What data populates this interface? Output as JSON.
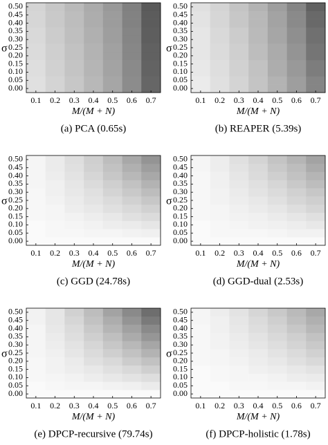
{
  "chart_data": [
    {
      "type": "heatmap",
      "caption": "(a)  PCA (0.65s)",
      "xlabel": "M/(M + N)",
      "ylabel": "σ",
      "x": [
        0.1,
        0.2,
        0.3,
        0.4,
        0.5,
        0.6,
        0.7
      ],
      "y": [
        0,
        0.05,
        0.1,
        0.15,
        0.2,
        0.25,
        0.3,
        0.35,
        0.4,
        0.45,
        0.5
      ],
      "xlim": [
        0.05,
        0.75
      ],
      "ylim": [
        -0.025,
        0.525
      ],
      "xticks": [
        0.1,
        0.2,
        0.3,
        0.4,
        0.5,
        0.6,
        0.7
      ],
      "yticks": [
        {
          "value": 0,
          "label": "0.00"
        },
        {
          "value": 0.05,
          "label": "0.05"
        },
        {
          "value": 0.1,
          "label": "0.10"
        },
        {
          "value": 0.15,
          "label": "0.15"
        },
        {
          "value": 0.2,
          "label": "0.20"
        },
        {
          "value": 0.25,
          "label": "0.25"
        },
        {
          "value": 0.3,
          "label": "0.30"
        },
        {
          "value": 0.35,
          "label": "0.35"
        },
        {
          "value": 0.4,
          "label": "0.40"
        },
        {
          "value": 0.45,
          "label": "0.45"
        },
        {
          "value": 0.5,
          "label": "0.50"
        }
      ],
      "z": [
        [
          0.12,
          0.17,
          0.22,
          0.28,
          0.35,
          0.45,
          0.6
        ],
        [
          0.12,
          0.17,
          0.22,
          0.28,
          0.35,
          0.45,
          0.6
        ],
        [
          0.13,
          0.18,
          0.23,
          0.29,
          0.36,
          0.46,
          0.61
        ],
        [
          0.13,
          0.18,
          0.23,
          0.29,
          0.36,
          0.46,
          0.61
        ],
        [
          0.14,
          0.19,
          0.24,
          0.3,
          0.37,
          0.47,
          0.62
        ],
        [
          0.14,
          0.19,
          0.24,
          0.3,
          0.37,
          0.47,
          0.62
        ],
        [
          0.15,
          0.2,
          0.25,
          0.31,
          0.38,
          0.48,
          0.63
        ],
        [
          0.15,
          0.2,
          0.25,
          0.31,
          0.38,
          0.48,
          0.63
        ],
        [
          0.16,
          0.21,
          0.26,
          0.32,
          0.39,
          0.49,
          0.64
        ],
        [
          0.16,
          0.21,
          0.26,
          0.32,
          0.39,
          0.49,
          0.64
        ],
        [
          0.17,
          0.22,
          0.27,
          0.33,
          0.4,
          0.5,
          0.65
        ]
      ]
    },
    {
      "type": "heatmap",
      "caption": "(b) REAPER (5.39s)",
      "xlabel": "M/(M + N)",
      "ylabel": "σ",
      "x": [
        0.1,
        0.2,
        0.3,
        0.4,
        0.5,
        0.6,
        0.7
      ],
      "y": [
        0,
        0.05,
        0.1,
        0.15,
        0.2,
        0.25,
        0.3,
        0.35,
        0.4,
        0.45,
        0.5
      ],
      "xlim": [
        0.05,
        0.75
      ],
      "ylim": [
        -0.025,
        0.525
      ],
      "xticks": [
        0.1,
        0.2,
        0.3,
        0.4,
        0.5,
        0.6,
        0.7
      ],
      "yticks": [
        {
          "value": 0,
          "label": "0.00"
        },
        {
          "value": 0.05,
          "label": "0.05"
        },
        {
          "value": 0.1,
          "label": "0.10"
        },
        {
          "value": 0.15,
          "label": "0.15"
        },
        {
          "value": 0.2,
          "label": "0.20"
        },
        {
          "value": 0.25,
          "label": "0.25"
        },
        {
          "value": 0.3,
          "label": "0.30"
        },
        {
          "value": 0.35,
          "label": "0.35"
        },
        {
          "value": 0.4,
          "label": "0.40"
        },
        {
          "value": 0.45,
          "label": "0.45"
        },
        {
          "value": 0.5,
          "label": "0.50"
        }
      ],
      "z": [
        [
          0.08,
          0.12,
          0.17,
          0.23,
          0.3,
          0.38,
          0.48
        ],
        [
          0.08,
          0.12,
          0.17,
          0.23,
          0.3,
          0.38,
          0.48
        ],
        [
          0.09,
          0.13,
          0.18,
          0.24,
          0.32,
          0.4,
          0.51
        ],
        [
          0.09,
          0.13,
          0.18,
          0.24,
          0.32,
          0.4,
          0.51
        ],
        [
          0.1,
          0.14,
          0.19,
          0.26,
          0.33,
          0.42,
          0.54
        ],
        [
          0.1,
          0.14,
          0.19,
          0.26,
          0.33,
          0.42,
          0.54
        ],
        [
          0.1,
          0.15,
          0.2,
          0.27,
          0.35,
          0.44,
          0.56
        ],
        [
          0.1,
          0.15,
          0.2,
          0.27,
          0.35,
          0.44,
          0.56
        ],
        [
          0.11,
          0.16,
          0.22,
          0.28,
          0.36,
          0.46,
          0.59
        ],
        [
          0.11,
          0.16,
          0.22,
          0.28,
          0.36,
          0.46,
          0.59
        ],
        [
          0.12,
          0.17,
          0.23,
          0.3,
          0.38,
          0.48,
          0.62
        ]
      ]
    },
    {
      "type": "heatmap",
      "caption": "(c) GGD (24.78s)",
      "xlabel": "M/(M + N)",
      "ylabel": "σ",
      "x": [
        0.1,
        0.2,
        0.3,
        0.4,
        0.5,
        0.6,
        0.7
      ],
      "y": [
        0,
        0.05,
        0.1,
        0.15,
        0.2,
        0.25,
        0.3,
        0.35,
        0.4,
        0.45,
        0.5
      ],
      "xlim": [
        0.05,
        0.75
      ],
      "ylim": [
        -0.025,
        0.525
      ],
      "xticks": [
        0.1,
        0.2,
        0.3,
        0.4,
        0.5,
        0.6,
        0.7
      ],
      "yticks": [
        {
          "value": 0,
          "label": "0.00"
        },
        {
          "value": 0.05,
          "label": "0.05"
        },
        {
          "value": 0.1,
          "label": "0.10"
        },
        {
          "value": 0.15,
          "label": "0.15"
        },
        {
          "value": 0.2,
          "label": "0.20"
        },
        {
          "value": 0.25,
          "label": "0.25"
        },
        {
          "value": 0.3,
          "label": "0.30"
        },
        {
          "value": 0.35,
          "label": "0.35"
        },
        {
          "value": 0.4,
          "label": "0.40"
        },
        {
          "value": 0.45,
          "label": "0.45"
        },
        {
          "value": 0.5,
          "label": "0.50"
        }
      ],
      "z": [
        [
          0.02,
          0.02,
          0.02,
          0.02,
          0.02,
          0.02,
          0.02
        ],
        [
          0.02,
          0.03,
          0.03,
          0.04,
          0.04,
          0.05,
          0.06
        ],
        [
          0.02,
          0.03,
          0.04,
          0.05,
          0.07,
          0.08,
          0.1
        ],
        [
          0.03,
          0.04,
          0.05,
          0.07,
          0.09,
          0.12,
          0.14
        ],
        [
          0.03,
          0.04,
          0.07,
          0.09,
          0.12,
          0.15,
          0.18
        ],
        [
          0.03,
          0.05,
          0.08,
          0.11,
          0.14,
          0.18,
          0.22
        ],
        [
          0.03,
          0.06,
          0.09,
          0.12,
          0.17,
          0.21,
          0.26
        ],
        [
          0.04,
          0.06,
          0.1,
          0.14,
          0.19,
          0.24,
          0.3
        ],
        [
          0.04,
          0.07,
          0.11,
          0.16,
          0.22,
          0.28,
          0.34
        ],
        [
          0.04,
          0.08,
          0.12,
          0.18,
          0.24,
          0.31,
          0.38
        ],
        [
          0.04,
          0.08,
          0.13,
          0.19,
          0.26,
          0.34,
          0.42
        ]
      ]
    },
    {
      "type": "heatmap",
      "caption": "(d) GGD-dual (2.53s)",
      "xlabel": "M/(M + N)",
      "ylabel": "σ",
      "x": [
        0.1,
        0.2,
        0.3,
        0.4,
        0.5,
        0.6,
        0.7
      ],
      "y": [
        0,
        0.05,
        0.1,
        0.15,
        0.2,
        0.25,
        0.3,
        0.35,
        0.4,
        0.45,
        0.5
      ],
      "xlim": [
        0.05,
        0.75
      ],
      "ylim": [
        -0.025,
        0.525
      ],
      "xticks": [
        0.1,
        0.2,
        0.3,
        0.4,
        0.5,
        0.6,
        0.7
      ],
      "yticks": [
        {
          "value": 0,
          "label": "0.00"
        },
        {
          "value": 0.05,
          "label": "0.05"
        },
        {
          "value": 0.1,
          "label": "0.10"
        },
        {
          "value": 0.15,
          "label": "0.15"
        },
        {
          "value": 0.2,
          "label": "0.20"
        },
        {
          "value": 0.25,
          "label": "0.25"
        },
        {
          "value": 0.3,
          "label": "0.30"
        },
        {
          "value": 0.35,
          "label": "0.35"
        },
        {
          "value": 0.4,
          "label": "0.40"
        },
        {
          "value": 0.45,
          "label": "0.45"
        },
        {
          "value": 0.5,
          "label": "0.50"
        }
      ],
      "z": [
        [
          0.02,
          0.02,
          0.02,
          0.02,
          0.02,
          0.02,
          0.02
        ],
        [
          0.02,
          0.03,
          0.03,
          0.03,
          0.04,
          0.05,
          0.05
        ],
        [
          0.02,
          0.03,
          0.04,
          0.05,
          0.06,
          0.07,
          0.09
        ],
        [
          0.03,
          0.04,
          0.05,
          0.06,
          0.08,
          0.1,
          0.12
        ],
        [
          0.03,
          0.04,
          0.06,
          0.08,
          0.1,
          0.13,
          0.16
        ],
        [
          0.03,
          0.05,
          0.07,
          0.09,
          0.12,
          0.16,
          0.19
        ],
        [
          0.03,
          0.05,
          0.08,
          0.11,
          0.14,
          0.18,
          0.22
        ],
        [
          0.03,
          0.06,
          0.09,
          0.12,
          0.16,
          0.21,
          0.26
        ],
        [
          0.03,
          0.06,
          0.1,
          0.14,
          0.19,
          0.24,
          0.29
        ],
        [
          0.04,
          0.07,
          0.11,
          0.15,
          0.21,
          0.26,
          0.33
        ],
        [
          0.04,
          0.07,
          0.12,
          0.17,
          0.23,
          0.29,
          0.36
        ]
      ]
    },
    {
      "type": "heatmap",
      "caption": "(e) DPCP-recursive (79.74s)",
      "xlabel": "M/(M + N)",
      "ylabel": "σ",
      "x": [
        0.1,
        0.2,
        0.3,
        0.4,
        0.5,
        0.6,
        0.7
      ],
      "y": [
        0,
        0.05,
        0.1,
        0.15,
        0.2,
        0.25,
        0.3,
        0.35,
        0.4,
        0.45,
        0.5
      ],
      "xlim": [
        0.05,
        0.75
      ],
      "ylim": [
        -0.025,
        0.525
      ],
      "xticks": [
        0.1,
        0.2,
        0.3,
        0.4,
        0.5,
        0.6,
        0.7
      ],
      "yticks": [
        {
          "value": 0,
          "label": "0.00"
        },
        {
          "value": 0.05,
          "label": "0.05"
        },
        {
          "value": 0.1,
          "label": "0.10"
        },
        {
          "value": 0.15,
          "label": "0.15"
        },
        {
          "value": 0.2,
          "label": "0.20"
        },
        {
          "value": 0.25,
          "label": "0.25"
        },
        {
          "value": 0.3,
          "label": "0.30"
        },
        {
          "value": 0.35,
          "label": "0.35"
        },
        {
          "value": 0.4,
          "label": "0.40"
        },
        {
          "value": 0.45,
          "label": "0.45"
        },
        {
          "value": 0.5,
          "label": "0.50"
        }
      ],
      "z": [
        [
          0.02,
          0.02,
          0.02,
          0.02,
          0.02,
          0.02,
          0.02
        ],
        [
          0.02,
          0.03,
          0.04,
          0.04,
          0.05,
          0.06,
          0.08
        ],
        [
          0.03,
          0.04,
          0.05,
          0.07,
          0.09,
          0.11,
          0.13
        ],
        [
          0.03,
          0.05,
          0.07,
          0.09,
          0.12,
          0.15,
          0.19
        ],
        [
          0.03,
          0.05,
          0.08,
          0.12,
          0.15,
          0.2,
          0.24
        ],
        [
          0.04,
          0.06,
          0.1,
          0.14,
          0.19,
          0.24,
          0.3
        ],
        [
          0.04,
          0.07,
          0.11,
          0.16,
          0.22,
          0.28,
          0.35
        ],
        [
          0.04,
          0.08,
          0.13,
          0.19,
          0.25,
          0.33,
          0.41
        ],
        [
          0.04,
          0.09,
          0.14,
          0.21,
          0.29,
          0.37,
          0.46
        ],
        [
          0.05,
          0.1,
          0.16,
          0.24,
          0.32,
          0.42,
          0.52
        ],
        [
          0.05,
          0.1,
          0.18,
          0.26,
          0.36,
          0.46,
          0.57
        ]
      ]
    },
    {
      "type": "heatmap",
      "caption": "(f) DPCP-holistic (1.78s)",
      "xlabel": "M/(M + N)",
      "ylabel": "σ",
      "x": [
        0.1,
        0.2,
        0.3,
        0.4,
        0.5,
        0.6,
        0.7
      ],
      "y": [
        0,
        0.05,
        0.1,
        0.15,
        0.2,
        0.25,
        0.3,
        0.35,
        0.4,
        0.45,
        0.5
      ],
      "xlim": [
        0.05,
        0.75
      ],
      "ylim": [
        -0.025,
        0.525
      ],
      "xticks": [
        0.1,
        0.2,
        0.3,
        0.4,
        0.5,
        0.6,
        0.7
      ],
      "yticks": [
        {
          "value": 0,
          "label": "0.00"
        },
        {
          "value": 0.05,
          "label": "0.05"
        },
        {
          "value": 0.1,
          "label": "0.10"
        },
        {
          "value": 0.15,
          "label": "0.15"
        },
        {
          "value": 0.2,
          "label": "0.20"
        },
        {
          "value": 0.25,
          "label": "0.25"
        },
        {
          "value": 0.3,
          "label": "0.30"
        },
        {
          "value": 0.35,
          "label": "0.35"
        },
        {
          "value": 0.4,
          "label": "0.40"
        },
        {
          "value": 0.45,
          "label": "0.45"
        },
        {
          "value": 0.5,
          "label": "0.50"
        }
      ],
      "z": [
        [
          0.02,
          0.02,
          0.02,
          0.02,
          0.02,
          0.02,
          0.02
        ],
        [
          0.02,
          0.02,
          0.03,
          0.03,
          0.04,
          0.04,
          0.05
        ],
        [
          0.02,
          0.03,
          0.04,
          0.04,
          0.05,
          0.07,
          0.08
        ],
        [
          0.02,
          0.03,
          0.04,
          0.06,
          0.07,
          0.09,
          0.11
        ],
        [
          0.03,
          0.04,
          0.05,
          0.07,
          0.09,
          0.12,
          0.15
        ],
        [
          0.03,
          0.04,
          0.06,
          0.08,
          0.11,
          0.14,
          0.18
        ],
        [
          0.03,
          0.05,
          0.07,
          0.1,
          0.13,
          0.17,
          0.21
        ],
        [
          0.03,
          0.05,
          0.08,
          0.11,
          0.15,
          0.19,
          0.24
        ],
        [
          0.03,
          0.06,
          0.09,
          0.13,
          0.17,
          0.22,
          0.28
        ],
        [
          0.04,
          0.06,
          0.1,
          0.14,
          0.19,
          0.25,
          0.31
        ],
        [
          0.04,
          0.07,
          0.11,
          0.16,
          0.21,
          0.27,
          0.34
        ]
      ]
    }
  ]
}
